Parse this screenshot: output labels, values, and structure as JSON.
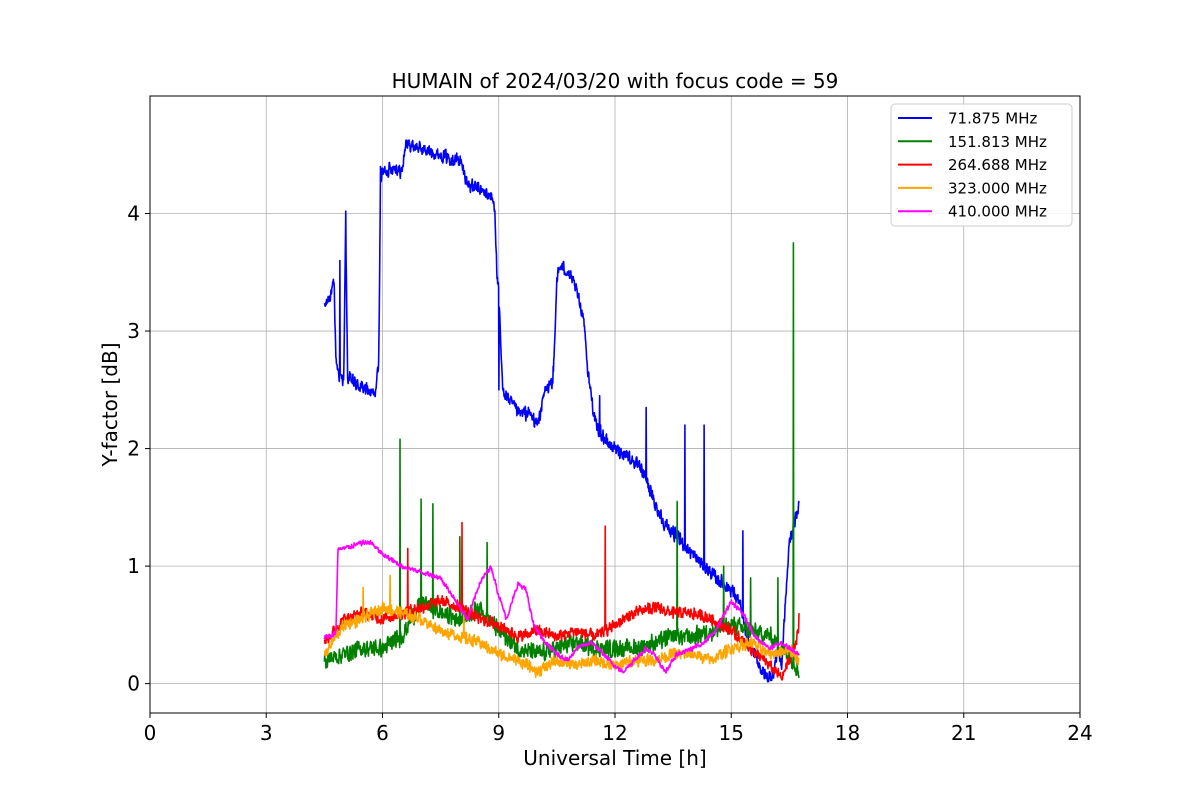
{
  "chart_data": {
    "type": "line",
    "title": "HUMAIN of 2024/03/20 with focus code = 59",
    "xlabel": "Universal Time [h]",
    "ylabel": "Y-factor [dB]",
    "xlim": [
      0,
      24
    ],
    "ylim": [
      -0.25,
      5.0
    ],
    "xticks": [
      0,
      3,
      6,
      9,
      12,
      15,
      18,
      21,
      24
    ],
    "yticks": [
      0,
      1,
      2,
      3,
      4
    ],
    "grid": true,
    "legend_position": "top-right",
    "series": [
      {
        "name": "71.875 MHz",
        "label": " 71.875 MHz",
        "color": "#0000ff",
        "noise": 0.07,
        "x": [
          4.5,
          4.7,
          4.75,
          4.8,
          4.9,
          5.0,
          5.05,
          5.1,
          5.3,
          5.6,
          5.8,
          5.9,
          5.95,
          6.0,
          6.3,
          6.5,
          6.6,
          7.0,
          7.5,
          8.0,
          8.2,
          8.5,
          8.8,
          8.9,
          8.95,
          9.0,
          9.1,
          9.2,
          9.5,
          9.8,
          10.0,
          10.2,
          10.4,
          10.5,
          10.6,
          10.8,
          11.0,
          11.2,
          11.3,
          11.5,
          11.6,
          11.8,
          12.0,
          12.3,
          12.6,
          12.8,
          13.0,
          13.3,
          13.6,
          14.0,
          14.3,
          14.6,
          14.8,
          15.0,
          15.2,
          15.4,
          15.6,
          15.8,
          15.95,
          16.1,
          16.2,
          16.3,
          16.4,
          16.5,
          16.6,
          16.75
        ],
        "y": [
          3.2,
          3.35,
          3.4,
          2.75,
          2.6,
          2.6,
          3.9,
          2.6,
          2.55,
          2.5,
          2.45,
          2.7,
          4.3,
          4.35,
          4.4,
          4.35,
          4.6,
          4.55,
          4.5,
          4.45,
          4.25,
          4.2,
          4.15,
          4.05,
          3.5,
          3.3,
          2.5,
          2.45,
          2.3,
          2.3,
          2.2,
          2.5,
          2.55,
          3.45,
          3.55,
          3.5,
          3.35,
          3.1,
          2.65,
          2.2,
          2.15,
          2.05,
          2.0,
          1.95,
          1.85,
          1.75,
          1.55,
          1.35,
          1.25,
          1.1,
          1.0,
          0.9,
          0.85,
          0.8,
          0.7,
          0.4,
          0.25,
          0.1,
          0.05,
          0.1,
          0.3,
          0.15,
          0.7,
          1.2,
          1.35,
          1.5
        ],
        "spikes": [
          [
            4.9,
            3.6
          ],
          [
            5.05,
            4.02
          ],
          [
            5.95,
            4.4
          ],
          [
            9.0,
            2.5
          ],
          [
            10.4,
            2.7
          ],
          [
            11.6,
            2.45
          ],
          [
            12.8,
            2.35
          ],
          [
            13.8,
            2.2
          ],
          [
            14.3,
            2.2
          ],
          [
            15.3,
            1.3
          ]
        ]
      },
      {
        "name": "151.813 MHz",
        "label": "151.813 MHz",
        "color": "#008000",
        "noise": 0.09,
        "x": [
          4.5,
          5.0,
          5.5,
          6.0,
          6.5,
          7.0,
          7.5,
          8.0,
          8.5,
          9.0,
          9.5,
          10.0,
          10.5,
          11.0,
          11.5,
          12.0,
          12.5,
          13.0,
          13.5,
          14.0,
          14.5,
          15.0,
          15.5,
          16.0,
          16.5,
          16.75
        ],
        "y": [
          0.2,
          0.25,
          0.3,
          0.3,
          0.4,
          0.7,
          0.6,
          0.55,
          0.65,
          0.45,
          0.3,
          0.25,
          0.3,
          0.35,
          0.3,
          0.3,
          0.3,
          0.35,
          0.4,
          0.4,
          0.45,
          0.5,
          0.45,
          0.4,
          0.25,
          0.1
        ],
        "spikes": [
          [
            6.45,
            2.08
          ],
          [
            7.0,
            1.57
          ],
          [
            7.3,
            1.53
          ],
          [
            8.0,
            1.25
          ],
          [
            8.7,
            1.2
          ],
          [
            13.6,
            1.55
          ],
          [
            14.8,
            1.0
          ],
          [
            15.5,
            0.9
          ],
          [
            16.2,
            0.9
          ],
          [
            16.6,
            3.75
          ]
        ]
      },
      {
        "name": "264.688 MHz",
        "label": "264.688 MHz",
        "color": "#ff0000",
        "noise": 0.06,
        "x": [
          4.5,
          5.0,
          5.5,
          6.0,
          6.5,
          7.0,
          7.5,
          8.0,
          8.5,
          9.0,
          9.5,
          10.0,
          10.5,
          11.0,
          11.5,
          12.0,
          12.5,
          13.0,
          13.5,
          14.0,
          14.5,
          15.0,
          15.5,
          16.0,
          16.3,
          16.5,
          16.75
        ],
        "y": [
          0.35,
          0.55,
          0.6,
          0.55,
          0.6,
          0.65,
          0.7,
          0.65,
          0.55,
          0.5,
          0.4,
          0.45,
          0.4,
          0.45,
          0.4,
          0.5,
          0.6,
          0.65,
          0.6,
          0.6,
          0.55,
          0.45,
          0.3,
          0.15,
          0.05,
          0.2,
          0.45
        ],
        "spikes": [
          [
            6.65,
            1.15
          ],
          [
            8.05,
            1.37
          ],
          [
            11.75,
            1.34
          ],
          [
            16.75,
            0.6
          ]
        ]
      },
      {
        "name": "323.000 MHz",
        "label": "323.000 MHz",
        "color": "#ffa500",
        "noise": 0.06,
        "x": [
          4.5,
          5.0,
          5.5,
          6.0,
          6.5,
          7.0,
          7.5,
          8.0,
          8.5,
          9.0,
          9.5,
          10.0,
          10.5,
          11.0,
          11.5,
          12.0,
          12.5,
          13.0,
          13.5,
          14.0,
          14.5,
          15.0,
          15.5,
          16.0,
          16.5,
          16.75
        ],
        "y": [
          0.25,
          0.5,
          0.55,
          0.65,
          0.6,
          0.55,
          0.45,
          0.4,
          0.35,
          0.25,
          0.2,
          0.1,
          0.2,
          0.15,
          0.2,
          0.15,
          0.2,
          0.2,
          0.25,
          0.25,
          0.2,
          0.3,
          0.35,
          0.25,
          0.3,
          0.2
        ],
        "spikes": [
          [
            5.5,
            0.82
          ],
          [
            6.2,
            0.92
          ],
          [
            8.1,
            0.6
          ]
        ]
      },
      {
        "name": "410.000 MHz",
        "label": "410.000 MHz",
        "color": "#ff00ff",
        "noise": 0.025,
        "x": [
          4.5,
          4.7,
          4.8,
          4.85,
          5.0,
          5.5,
          5.7,
          6.0,
          6.5,
          7.0,
          7.5,
          7.8,
          8.2,
          8.5,
          8.8,
          9.0,
          9.2,
          9.5,
          9.7,
          9.9,
          10.2,
          10.5,
          10.8,
          11.0,
          11.4,
          11.7,
          12.0,
          12.2,
          12.5,
          12.8,
          13.0,
          13.3,
          13.6,
          14.0,
          14.3,
          14.6,
          15.0,
          15.3,
          15.6,
          16.0,
          16.3,
          16.5,
          16.75
        ],
        "y": [
          0.4,
          0.4,
          0.45,
          1.15,
          1.15,
          1.2,
          1.2,
          1.1,
          1.0,
          0.95,
          0.9,
          0.75,
          0.55,
          0.85,
          1.0,
          0.75,
          0.55,
          0.85,
          0.8,
          0.5,
          0.35,
          0.25,
          0.2,
          0.3,
          0.35,
          0.25,
          0.15,
          0.1,
          0.2,
          0.3,
          0.25,
          0.1,
          0.25,
          0.3,
          0.35,
          0.45,
          0.7,
          0.6,
          0.4,
          0.3,
          0.35,
          0.3,
          0.25
        ],
        "spikes": []
      }
    ]
  }
}
